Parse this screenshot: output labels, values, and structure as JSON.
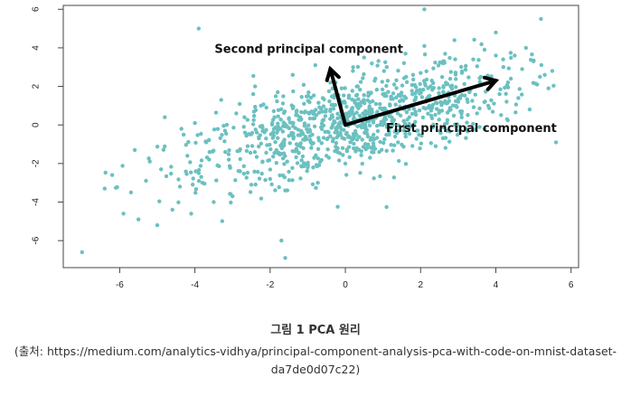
{
  "chart_data": {
    "type": "scatter",
    "xlim": [
      -7.5,
      6.2
    ],
    "ylim": [
      -7.4,
      6.2
    ],
    "x_ticks": [
      -6,
      -4,
      -2,
      0,
      2,
      4,
      6
    ],
    "y_ticks": [
      -6,
      -4,
      -2,
      0,
      2,
      4,
      6
    ],
    "grid": false,
    "point_color": "#6cc0c0",
    "arrows": [
      {
        "label": "Second principal component",
        "from": [
          0,
          0
        ],
        "to": [
          -0.4,
          2.9
        ]
      },
      {
        "label": "First principal component",
        "from": [
          0,
          0
        ],
        "to": [
          4.0,
          2.3
        ]
      }
    ],
    "points_x": [
      -7.0,
      -6.4,
      -6.2,
      -5.9,
      -5.7,
      -5.6,
      -5.5,
      -5.3,
      -5.2,
      -5.0,
      -4.9,
      -4.8,
      -4.6,
      -4.4,
      -4.3,
      -4.2,
      -4.1,
      -4.0,
      -3.9,
      -3.8,
      -3.7,
      -3.6,
      -3.5,
      -3.4,
      -3.3,
      -3.2,
      -3.1,
      -3.0,
      -2.9,
      -2.8,
      -2.7,
      -2.6,
      -2.5,
      -2.4,
      -2.3,
      -2.2,
      -2.1,
      -2.0,
      -1.9,
      -1.8,
      -1.7,
      -1.6,
      -1.5,
      -1.4,
      -1.3,
      -1.2,
      -1.1,
      -1.0,
      -0.9,
      -0.8,
      -0.7,
      -0.6,
      -0.5,
      -0.4,
      -0.3,
      -0.2,
      -0.1,
      0.0,
      0.1,
      0.2,
      0.3,
      0.4,
      0.5,
      0.6,
      0.7,
      0.8,
      0.9,
      1.0,
      1.1,
      1.2,
      1.3,
      1.4,
      1.5,
      1.6,
      1.7,
      1.8,
      1.9,
      2.0,
      2.1,
      2.2,
      2.3,
      2.4,
      2.5,
      2.6,
      2.7,
      2.8,
      2.9,
      3.0,
      3.1,
      3.2,
      3.3,
      3.4,
      3.5,
      3.6,
      3.7,
      3.8,
      3.9,
      4.0,
      4.1,
      4.2,
      4.3,
      4.4,
      4.5,
      4.6,
      4.7,
      4.8,
      4.9,
      5.0,
      5.1,
      5.2,
      5.3,
      5.4,
      5.5,
      -3.9,
      -1.6,
      2.1,
      4.0,
      -1.7,
      5.6
    ],
    "points_y": [
      -6.6,
      -3.3,
      -2.6,
      -4.6,
      -3.5,
      -1.3,
      -4.9,
      -2.9,
      -1.9,
      -5.2,
      -2.3,
      0.4,
      -4.4,
      -3.2,
      -0.5,
      -1.6,
      -4.6,
      0.1,
      -2.5,
      -3.0,
      -0.9,
      -1.4,
      -4.0,
      -2.1,
      1.3,
      -0.3,
      -1.8,
      -3.7,
      0.6,
      -2.4,
      -0.1,
      -1.1,
      -3.1,
      2.0,
      -0.7,
      -1.9,
      0.9,
      -2.8,
      -0.2,
      1.7,
      -1.5,
      -3.4,
      0.3,
      2.6,
      -1.0,
      -0.5,
      1.1,
      -2.2,
      0.7,
      3.1,
      -0.8,
      1.4,
      -1.6,
      2.2,
      0.2,
      -0.4,
      1.9,
      -2.0,
      0.5,
      2.8,
      -1.2,
      1.0,
      3.5,
      -0.6,
      0.8,
      2.4,
      -1.4,
      1.6,
      3.0,
      0.0,
      2.1,
      -0.9,
      1.3,
      3.7,
      0.4,
      2.6,
      -0.3,
      1.8,
      4.1,
      0.9,
      2.3,
      -1.1,
      1.5,
      3.2,
      0.1,
      2.0,
      4.4,
      1.2,
      2.7,
      -0.2,
      1.7,
      3.4,
      0.6,
      2.5,
      3.9,
      1.0,
      2.2,
      4.8,
      1.6,
      3.0,
      0.3,
      2.4,
      3.6,
      1.4,
      2.9,
      4.0,
      0.8,
      3.3,
      2.1,
      5.5,
      2.6,
      1.9,
      2.8,
      5.0,
      -6.9,
      6.0,
      3.6,
      -6.0,
      -0.9
    ],
    "point_density_note": ""
  },
  "caption": {
    "title": "그림 1 PCA 원리",
    "source": "(출처: https://medium.com/analytics-vidhya/principal-component-analysis-pca-with-code-on-mnist-dataset-da7de0d07c22)"
  }
}
